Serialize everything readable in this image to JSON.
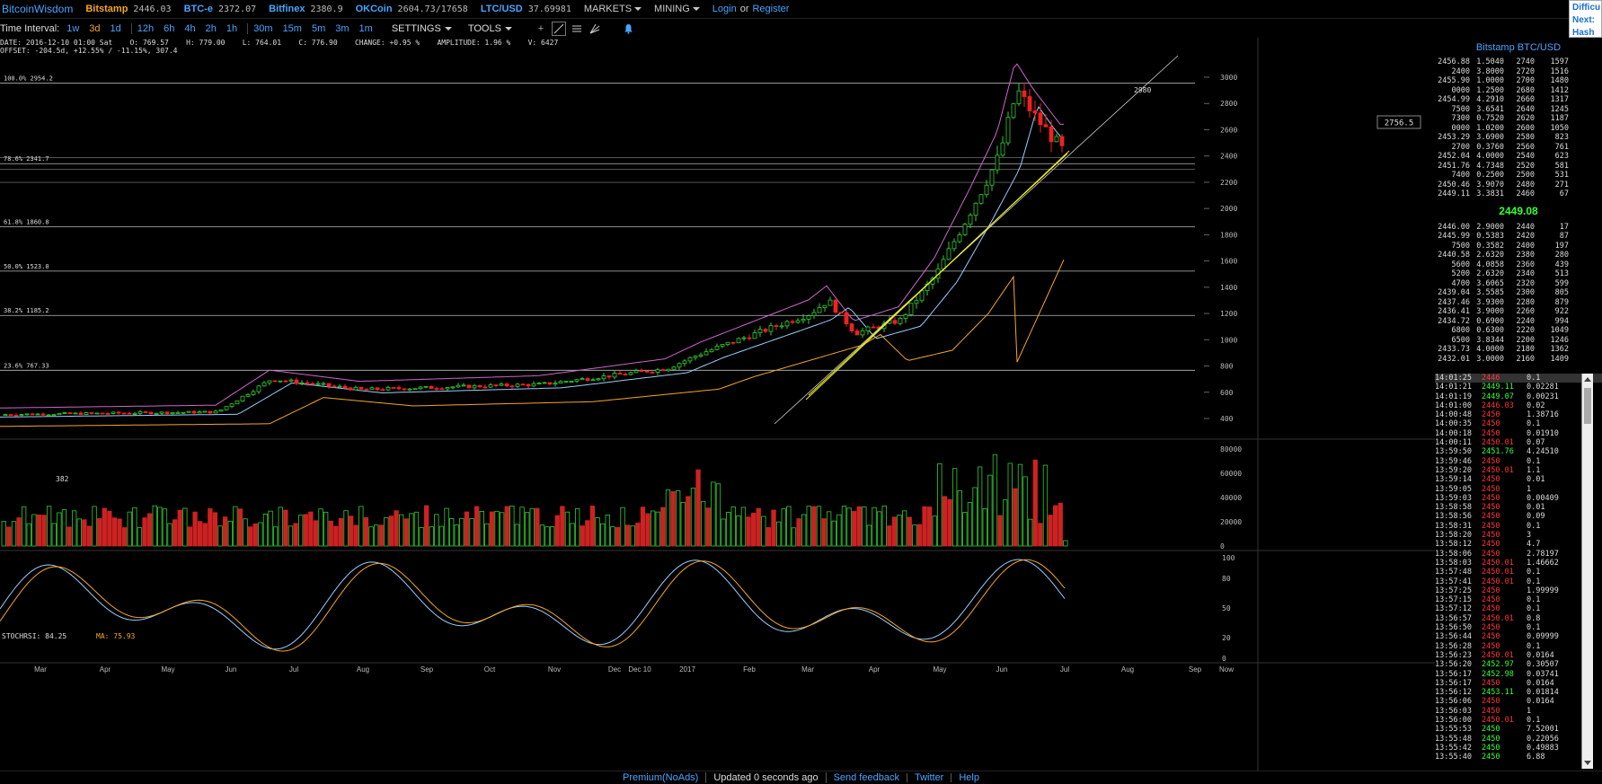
{
  "topbar": {
    "brand": "BitcoinWisdom",
    "tickers": [
      {
        "name": "Bitstamp",
        "price": "2446.03",
        "color": "#f5a623"
      },
      {
        "name": "BTC-e",
        "price": "2372.07",
        "color": "#4aa3ff"
      },
      {
        "name": "Bitfinex",
        "price": "2380.9",
        "color": "#4aa3ff"
      },
      {
        "name": "OKCoin",
        "price": "2604.73/17658",
        "color": "#4aa3ff"
      },
      {
        "name": "LTC/USD",
        "price": "37.69981",
        "color": "#4aa3ff"
      }
    ],
    "markets_label": "MARKETS",
    "mining_label": "MINING",
    "login_label": "Login",
    "or_label": "or",
    "register_label": "Register"
  },
  "right_info": {
    "line1": "Difficu",
    "line2": "Next:",
    "line3": "Hash R"
  },
  "toolbar": {
    "time_interval_label": "Time Interval:",
    "intervals": [
      "1w",
      "3d",
      "1d",
      "12h",
      "6h",
      "4h",
      "2h",
      "1h",
      "30m",
      "15m",
      "5m",
      "3m",
      "1m"
    ],
    "active_interval": "3d",
    "settings_label": "SETTINGS",
    "tools_label": "TOOLS"
  },
  "info": {
    "line1": "DATE: 2016-12-10 01:00 Sat    O: 769.57    H: 779.00    L: 764.01    C: 776.90    CHANGE: +0.95 %    AMPLITUDE: 1.96 %    V: 6427",
    "line2": "OFFSET: -204.5d, +12.55% / -11.15%, 307.4"
  },
  "price_chart": {
    "y_ticks": [
      400,
      600,
      800,
      1000,
      1200,
      1400,
      1600,
      1800,
      2000,
      2200,
      2400,
      2600,
      2800,
      3000
    ],
    "fib_levels": [
      {
        "label": "100.0% 2954.2",
        "value": 2954.2
      },
      {
        "label": "78.6% 2341.7",
        "value": 2341.7
      },
      {
        "label": "61.8% 1860.8",
        "value": 1860.8
      },
      {
        "label": "50.0% 1523.0",
        "value": 1523.0
      },
      {
        "label": "38.2% 1185.2",
        "value": 1185.2
      },
      {
        "label": "23.6% 767.33",
        "value": 767.33
      }
    ],
    "current_price_label": "2756.5",
    "high_label": "2980",
    "low_label": "382"
  },
  "volume_chart": {
    "y_ticks": [
      "0",
      "20000",
      "40000",
      "60000",
      "80000"
    ]
  },
  "stoch_chart": {
    "label": "STOCHRSI: 84.25",
    "ma_label": "MA: 75.93",
    "y_ticks": [
      "0",
      "20",
      "50",
      "80",
      "100"
    ]
  },
  "x_axis": [
    "Mar",
    "Apr",
    "May",
    "Jun",
    "Jul",
    "Aug",
    "Sep",
    "Oct",
    "Nov",
    "Dec",
    "Dec 10",
    "2017",
    "Feb",
    "Mar",
    "Apr",
    "May",
    "Jun",
    "Jul",
    "Aug",
    "Sep",
    "Now"
  ],
  "orderbook": {
    "title": "Bitstamp BTC/USD",
    "asks": [
      [
        "2456.88",
        "1.5040",
        "2740",
        "1597"
      ],
      [
        "2400",
        "3.8000",
        "2720",
        "1516"
      ],
      [
        "2455.90",
        "1.0000",
        "2700",
        "1480"
      ],
      [
        "0000",
        "1.2500",
        "2680",
        "1412"
      ],
      [
        "2454.99",
        "4.2910",
        "2660",
        "1317"
      ],
      [
        "7500",
        "3.6541",
        "2640",
        "1245"
      ],
      [
        "7300",
        "0.7520",
        "2620",
        "1187"
      ],
      [
        "0000",
        "1.0200",
        "2600",
        "1050"
      ],
      [
        "2453.29",
        "3.6900",
        "2580",
        "823"
      ],
      [
        "2700",
        "0.3760",
        "2560",
        "761"
      ],
      [
        "2452.04",
        "4.0000",
        "2540",
        "623"
      ],
      [
        "2451.76",
        "4.7348",
        "2520",
        "581"
      ],
      [
        "7400",
        "0.2500",
        "2500",
        "531"
      ],
      [
        "2450.46",
        "3.9070",
        "2480",
        "271"
      ],
      [
        "2449.11",
        "3.3831",
        "2460",
        "67"
      ]
    ],
    "last_price": "2449.08",
    "bids": [
      [
        "2446.00",
        "2.9000",
        "2440",
        "17"
      ],
      [
        "2445.99",
        "0.5383",
        "2420",
        "87"
      ],
      [
        "7500",
        "0.3582",
        "2400",
        "197"
      ],
      [
        "2440.58",
        "2.6320",
        "2380",
        "280"
      ],
      [
        "5600",
        "4.0858",
        "2360",
        "439"
      ],
      [
        "5200",
        "2.6320",
        "2340",
        "513"
      ],
      [
        "4700",
        "3.6065",
        "2320",
        "599"
      ],
      [
        "2439.04",
        "3.5585",
        "2300",
        "805"
      ],
      [
        "2437.46",
        "3.9300",
        "2280",
        "879"
      ],
      [
        "2436.41",
        "3.9000",
        "2260",
        "922"
      ],
      [
        "2434.72",
        "0.6900",
        "2240",
        "994"
      ],
      [
        "6800",
        "0.6300",
        "2220",
        "1049"
      ],
      [
        "6500",
        "3.8344",
        "2200",
        "1246"
      ],
      [
        "2433.73",
        "4.0000",
        "2180",
        "1362"
      ],
      [
        "2432.01",
        "3.0000",
        "2160",
        "1409"
      ]
    ]
  },
  "trades": [
    [
      "14:01:25",
      "2446",
      "dn",
      "0.1"
    ],
    [
      "14:01:21",
      "2449.11",
      "up",
      "0.02281"
    ],
    [
      "14:01:19",
      "2449.07",
      "up",
      "0.00231"
    ],
    [
      "14:01:00",
      "2446.03",
      "dn",
      "0.02"
    ],
    [
      "14:00:48",
      "2450",
      "dn",
      "1.38716"
    ],
    [
      "14:00:35",
      "2450",
      "dn",
      "0.1"
    ],
    [
      "14:00:18",
      "2450",
      "dn",
      "0.01910"
    ],
    [
      "14:00:11",
      "2450.01",
      "dn",
      "0.07"
    ],
    [
      "13:59:50",
      "2451.76",
      "up",
      "4.24510"
    ],
    [
      "13:59:46",
      "2450",
      "dn",
      "0.1"
    ],
    [
      "13:59:20",
      "2450.01",
      "dn",
      "1.1"
    ],
    [
      "13:59:14",
      "2450",
      "dn",
      "0.01"
    ],
    [
      "13:59:05",
      "2450",
      "dn",
      "1"
    ],
    [
      "13:59:03",
      "2450",
      "dn",
      "0.00409"
    ],
    [
      "13:58:58",
      "2450",
      "dn",
      "0.01"
    ],
    [
      "13:58:56",
      "2450",
      "dn",
      "0.09"
    ],
    [
      "13:58:31",
      "2450",
      "dn",
      "0.1"
    ],
    [
      "13:58:20",
      "2450",
      "dn",
      "3"
    ],
    [
      "13:58:12",
      "2450",
      "dn",
      "4.7"
    ],
    [
      "13:58:06",
      "2450",
      "dn",
      "2.78197"
    ],
    [
      "13:58:03",
      "2450.01",
      "dn",
      "1.46662"
    ],
    [
      "13:57:48",
      "2450.01",
      "dn",
      "0.1"
    ],
    [
      "13:57:41",
      "2450.01",
      "dn",
      "0.1"
    ],
    [
      "13:57:25",
      "2450",
      "dn",
      "1.99999"
    ],
    [
      "13:57:15",
      "2450",
      "dn",
      "0.1"
    ],
    [
      "13:57:12",
      "2450",
      "dn",
      "0.1"
    ],
    [
      "13:56:57",
      "2450.01",
      "dn",
      "0.8"
    ],
    [
      "13:56:50",
      "2450",
      "dn",
      "0.1"
    ],
    [
      "13:56:44",
      "2450",
      "dn",
      "0.09999"
    ],
    [
      "13:56:28",
      "2450",
      "dn",
      "0.1"
    ],
    [
      "13:56:23",
      "2450.01",
      "dn",
      "0.0164"
    ],
    [
      "13:56:20",
      "2452.97",
      "up",
      "0.30507"
    ],
    [
      "13:56:17",
      "2452.98",
      "up",
      "0.03741"
    ],
    [
      "13:56:17",
      "2450",
      "dn",
      "0.0164"
    ],
    [
      "13:56:12",
      "2453.11",
      "up",
      "0.01814"
    ],
    [
      "13:56:06",
      "2450",
      "dn",
      "0.0164"
    ],
    [
      "13:56:03",
      "2450",
      "dn",
      "1"
    ],
    [
      "13:56:00",
      "2450.01",
      "dn",
      "0.1"
    ],
    [
      "13:55:53",
      "2450",
      "up",
      "7.52001"
    ],
    [
      "13:55:48",
      "2450",
      "up",
      "0.22056"
    ],
    [
      "13:55:42",
      "2450",
      "up",
      "0.49883"
    ],
    [
      "13:55:40",
      "2450",
      "up",
      "6.88"
    ]
  ],
  "footer": {
    "premium_label": "Premium(NoAds)",
    "updated_label": "Updated 0 seconds ago",
    "feedback_label": "Send feedback",
    "twitter_label": "Twitter",
    "help_label": "Help"
  }
}
